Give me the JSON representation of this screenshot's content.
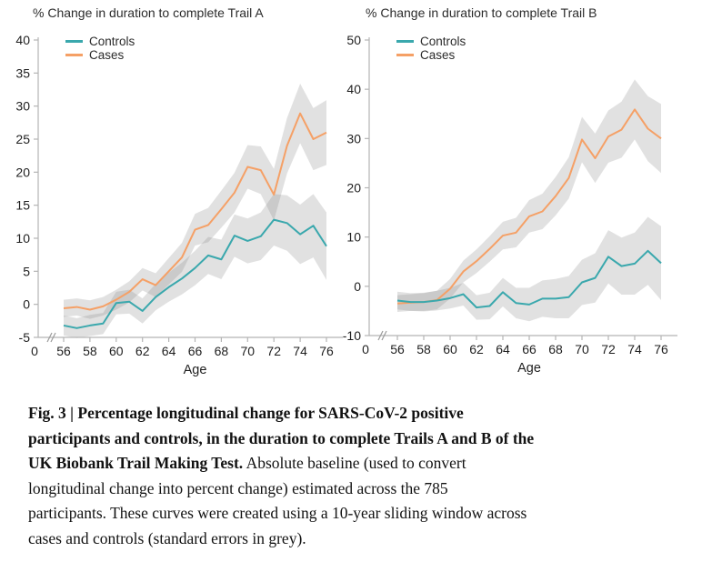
{
  "style": {
    "accent_controls": "#3aa8ad",
    "accent_cases": "#f5a066",
    "band_color": "rgba(130,130,130,0.24)",
    "axis_color": "#b4b4b4",
    "tick_text_color": "#1f1f1f"
  },
  "chart_data": [
    {
      "type": "line",
      "title": "% Change in duration to complete Trail A",
      "xlabel": "Age",
      "x_origin_label": "0",
      "x": [
        56,
        57,
        58,
        59,
        60,
        61,
        62,
        63,
        64,
        65,
        66,
        67,
        68,
        69,
        70,
        71,
        72,
        73,
        74,
        75,
        76
      ],
      "xticks": [
        56,
        58,
        60,
        62,
        64,
        66,
        68,
        70,
        72,
        74,
        76
      ],
      "ylim": [
        -5,
        40
      ],
      "yticks": [
        -5,
        0,
        5,
        10,
        15,
        20,
        25,
        30,
        35,
        40
      ],
      "legend_position": "top-left",
      "grid": false,
      "series": [
        {
          "name": "Controls",
          "color": "#3aa8ad",
          "values": [
            -3.2,
            -3.6,
            -3.2,
            -2.9,
            0.2,
            0.4,
            -1.0,
            1.1,
            2.6,
            3.9,
            5.5,
            7.4,
            6.8,
            10.4,
            9.6,
            10.3,
            12.8,
            12.3,
            10.6,
            11.9,
            8.8
          ],
          "se": [
            1.5,
            1.5,
            1.6,
            1.6,
            1.7,
            1.8,
            1.9,
            2.0,
            2.2,
            2.4,
            2.6,
            2.8,
            3.0,
            3.2,
            3.4,
            3.6,
            3.9,
            4.2,
            4.5,
            4.8,
            5.1
          ]
        },
        {
          "name": "Cases",
          "color": "#f5a066",
          "values": [
            -0.6,
            -0.4,
            -0.8,
            -0.3,
            0.7,
            1.9,
            3.8,
            2.9,
            5.0,
            7.1,
            11.3,
            12.0,
            14.4,
            16.9,
            20.8,
            20.3,
            16.6,
            24.0,
            28.9,
            25.0,
            26.0
          ],
          "se": [
            1.3,
            1.3,
            1.4,
            1.4,
            1.5,
            1.6,
            1.7,
            1.8,
            2.0,
            2.2,
            2.4,
            2.6,
            2.8,
            3.0,
            3.3,
            3.6,
            3.9,
            4.2,
            4.5,
            4.7,
            4.9
          ]
        }
      ]
    },
    {
      "type": "line",
      "title": "% Change in duration to complete Trail B",
      "xlabel": "Age",
      "x_origin_label": "0",
      "x": [
        56,
        57,
        58,
        59,
        60,
        61,
        62,
        63,
        64,
        65,
        66,
        67,
        68,
        69,
        70,
        71,
        72,
        73,
        74,
        75,
        76
      ],
      "xticks": [
        56,
        58,
        60,
        62,
        64,
        66,
        68,
        70,
        72,
        74,
        76
      ],
      "ylim": [
        -10,
        50
      ],
      "yticks": [
        -10,
        0,
        10,
        20,
        30,
        40,
        50
      ],
      "legend_position": "top-left",
      "grid": false,
      "series": [
        {
          "name": "Controls",
          "color": "#3aa8ad",
          "values": [
            -2.9,
            -3.2,
            -3.2,
            -2.9,
            -2.4,
            -1.6,
            -4.3,
            -4.0,
            -1.2,
            -3.4,
            -3.7,
            -2.5,
            -2.5,
            -2.2,
            0.8,
            1.7,
            6.0,
            4.1,
            4.6,
            7.2,
            4.7
          ],
          "se": [
            1.8,
            1.8,
            1.9,
            2.0,
            2.1,
            2.3,
            2.5,
            2.7,
            2.9,
            3.1,
            3.4,
            3.7,
            4.0,
            4.3,
            4.6,
            5.0,
            5.4,
            5.8,
            6.3,
            6.9,
            7.5
          ]
        },
        {
          "name": "Cases",
          "color": "#f5a066",
          "values": [
            -3.5,
            -3.3,
            -3.2,
            -2.8,
            -0.5,
            3.0,
            5.1,
            7.6,
            10.3,
            10.9,
            14.2,
            15.2,
            18.3,
            22.0,
            29.8,
            26.0,
            30.4,
            31.8,
            35.9,
            32.0,
            30.0
          ],
          "se": [
            1.7,
            1.7,
            1.8,
            1.9,
            2.0,
            2.2,
            2.4,
            2.6,
            2.8,
            3.0,
            3.3,
            3.6,
            3.9,
            4.2,
            4.6,
            5.0,
            5.3,
            5.7,
            6.1,
            6.6,
            7.0
          ]
        }
      ]
    }
  ],
  "caption": {
    "lines": [
      {
        "bold": "Fig. 3 | Percentage longitudinal change for SARS-CoV-2 positive",
        "regular": ""
      },
      {
        "bold": "participants and controls, in the duration to complete Trails A and B of the",
        "regular": ""
      },
      {
        "bold": "UK Biobank Trail Making Test.",
        "regular": " Absolute baseline (used to convert"
      },
      {
        "bold": "",
        "regular": "longitudinal change into percent change) estimated across the 785"
      },
      {
        "bold": "",
        "regular": "participants. These curves were created using a 10-year sliding window across"
      },
      {
        "bold": "",
        "regular": "cases and controls (standard errors in grey)."
      }
    ]
  }
}
